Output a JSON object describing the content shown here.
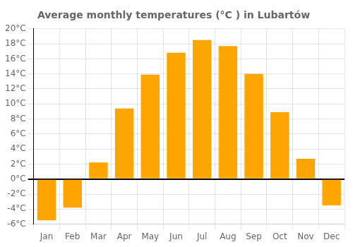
{
  "chart_data": {
    "type": "bar",
    "title": "Average monthly temperatures (°C ) in Lubartów",
    "categories": [
      "Jan",
      "Feb",
      "Mar",
      "Apr",
      "May",
      "Jun",
      "Jul",
      "Aug",
      "Sep",
      "Oct",
      "Nov",
      "Dec"
    ],
    "values": [
      -5.5,
      -3.8,
      2.2,
      9.4,
      13.9,
      16.8,
      18.5,
      17.7,
      14.0,
      8.9,
      2.7,
      -3.5
    ],
    "color": "#FFA500",
    "ylim": [
      -6,
      20
    ],
    "yticks": [
      {
        "value": -6,
        "label": "-6°C"
      },
      {
        "value": -4,
        "label": "-4°C"
      },
      {
        "value": -2,
        "label": "-2°C"
      },
      {
        "value": 0,
        "label": "0°C"
      },
      {
        "value": 2,
        "label": "2°C"
      },
      {
        "value": 4,
        "label": "4°C"
      },
      {
        "value": 6,
        "label": "6°C"
      },
      {
        "value": 8,
        "label": "8°C"
      },
      {
        "value": 10,
        "label": "10°C"
      },
      {
        "value": 12,
        "label": "12°C"
      },
      {
        "value": 14,
        "label": "14°C"
      },
      {
        "value": 16,
        "label": "16°C"
      },
      {
        "value": 18,
        "label": "18°C"
      },
      {
        "value": 20,
        "label": "20°C"
      }
    ],
    "grid": true
  }
}
